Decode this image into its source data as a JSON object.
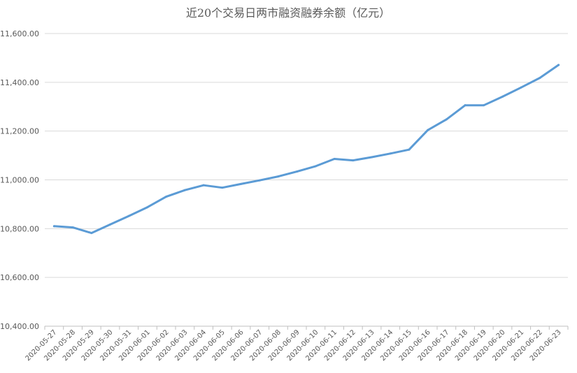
{
  "chart_data": {
    "type": "line",
    "title": "近20个交易日两市融资融券余额（亿元）",
    "xlabel": "",
    "ylabel": "",
    "ylim": [
      10400,
      11600
    ],
    "yticks": [
      10400,
      10600,
      10800,
      11000,
      11200,
      11400,
      11600
    ],
    "ytick_labels": [
      "10,400.00",
      "10,600.00",
      "10,800.00",
      "11,000.00",
      "11,200.00",
      "11,400.00",
      "11,600.00"
    ],
    "grid": true,
    "legend": "none",
    "categories": [
      "2020-05-27",
      "2020-05-28",
      "2020-05-29",
      "2020-05-30",
      "2020-05-31",
      "2020-06-01",
      "2020-06-02",
      "2020-06-03",
      "2020-06-04",
      "2020-06-05",
      "2020-06-06",
      "2020-06-07",
      "2020-06-08",
      "2020-06-09",
      "2020-06-10",
      "2020-06-11",
      "2020-06-12",
      "2020-06-13",
      "2020-06-14",
      "2020-06-15",
      "2020-06-16",
      "2020-06-17",
      "2020-06-18",
      "2020-06-19",
      "2020-06-20",
      "2020-06-21",
      "2020-06-22",
      "2020-06-23"
    ],
    "series": [
      {
        "color": "#5b9bd5",
        "values": [
          10810,
          10805,
          10782,
          10817,
          10852,
          10888,
          10931,
          10958,
          10978,
          10968,
          10983,
          10998,
          11014,
          11034,
          11056,
          11086,
          11080,
          11093,
          11108,
          11124,
          11204,
          11248,
          11306,
          11306,
          11341,
          11379,
          11418,
          11471
        ]
      }
    ]
  }
}
